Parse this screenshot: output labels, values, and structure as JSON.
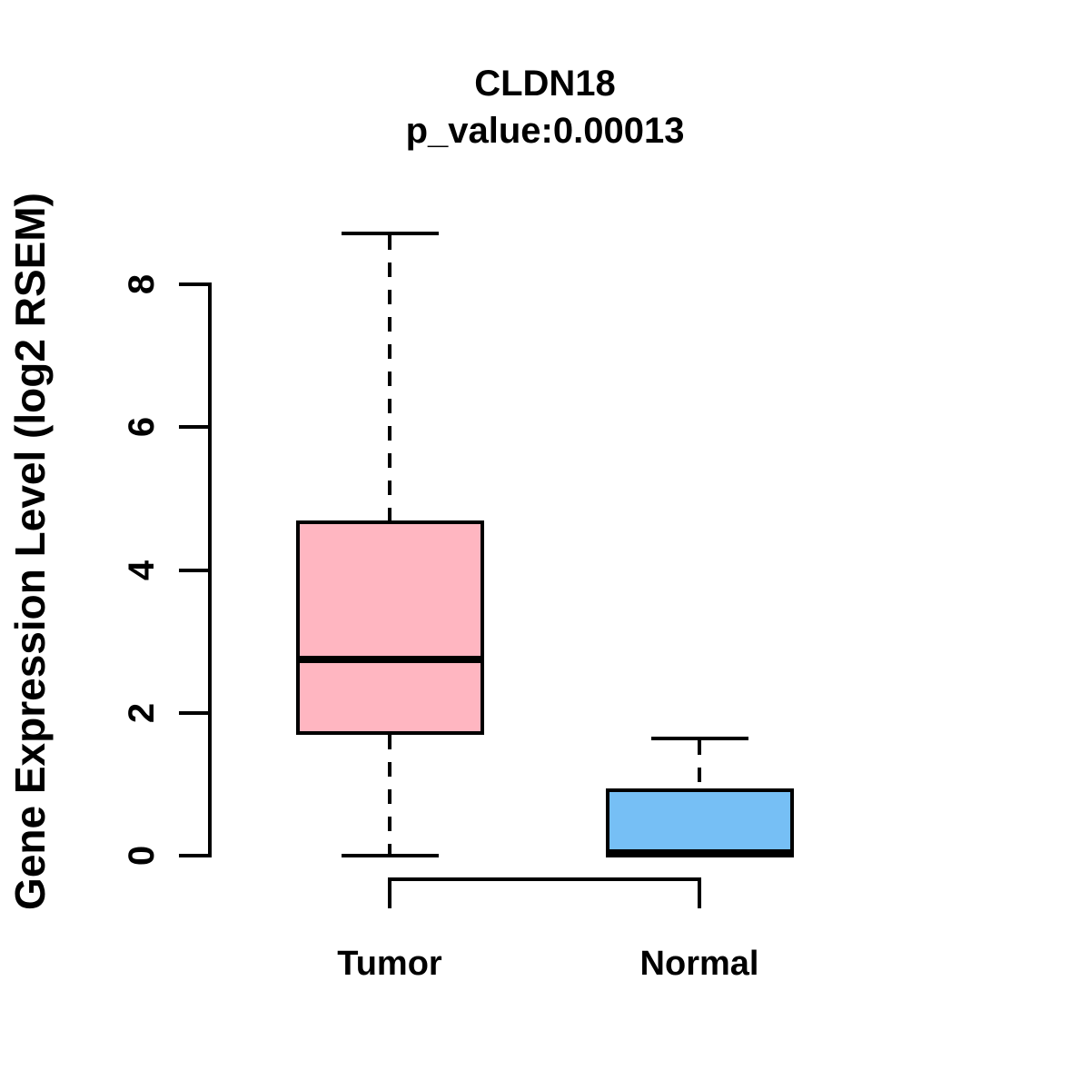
{
  "chart_data": {
    "type": "boxplot",
    "title": "CLDN18",
    "subtitle": "p_value:0.00013",
    "ylabel": "Gene Expression Level (log2 RSEM)",
    "xlabel": "",
    "yticks": [
      0,
      2,
      4,
      6,
      8
    ],
    "ylim": [
      0,
      8.8
    ],
    "grid": false,
    "legend": "none",
    "categories": [
      "Tumor",
      "Normal"
    ],
    "groups": [
      {
        "label": "Tumor",
        "color": "#FFB6C1",
        "min": 0,
        "q1": 1.72,
        "median": 2.75,
        "q3": 4.67,
        "max": 8.71
      },
      {
        "label": "Normal",
        "color": "#76BFF5",
        "min": 0,
        "q1": 0,
        "median": 0.04,
        "q3": 0.92,
        "max": 1.64
      }
    ],
    "line_color": "#000000",
    "background_color": "#FFFFFF"
  }
}
